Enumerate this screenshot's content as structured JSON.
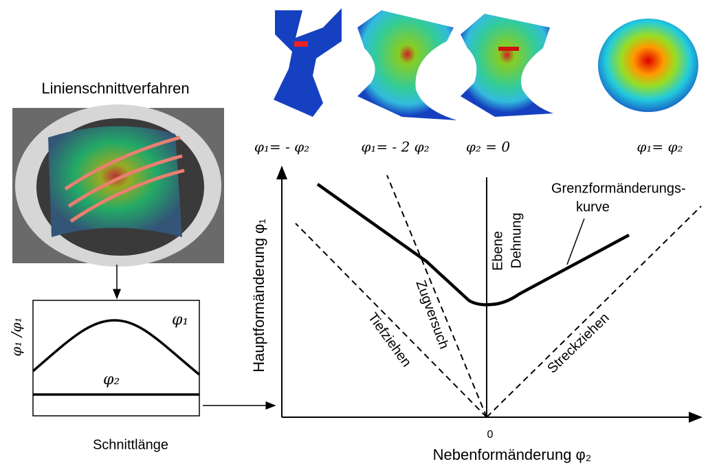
{
  "left_panel": {
    "title": "Linienschnittverfahren",
    "plot": {
      "y_label": "φ₁ /φ₁",
      "curve_label_1": "φ₁",
      "curve_label_2": "φ₂",
      "x_label": "Schnittlänge"
    }
  },
  "specimens": [
    {
      "label": "φ₁= - φ₂"
    },
    {
      "label": "φ₁= - 2 φ₂"
    },
    {
      "label": "φ₂ = 0"
    },
    {
      "label": "φ₁= φ₂"
    }
  ],
  "main_plot": {
    "y_label": "Hauptformänderung φ₁",
    "x_label": "Nebenformänderung φ₂",
    "origin_label": "0",
    "curve_label": [
      "Grenzformänderungs-",
      "kurve"
    ],
    "plane_strain_label": [
      "Ebene",
      "Dehnung"
    ],
    "tensile_test_label": "Zugversuch",
    "deep_drawing_label": "Tiefziehen",
    "stretch_forming_label": "Streckziehen"
  }
}
